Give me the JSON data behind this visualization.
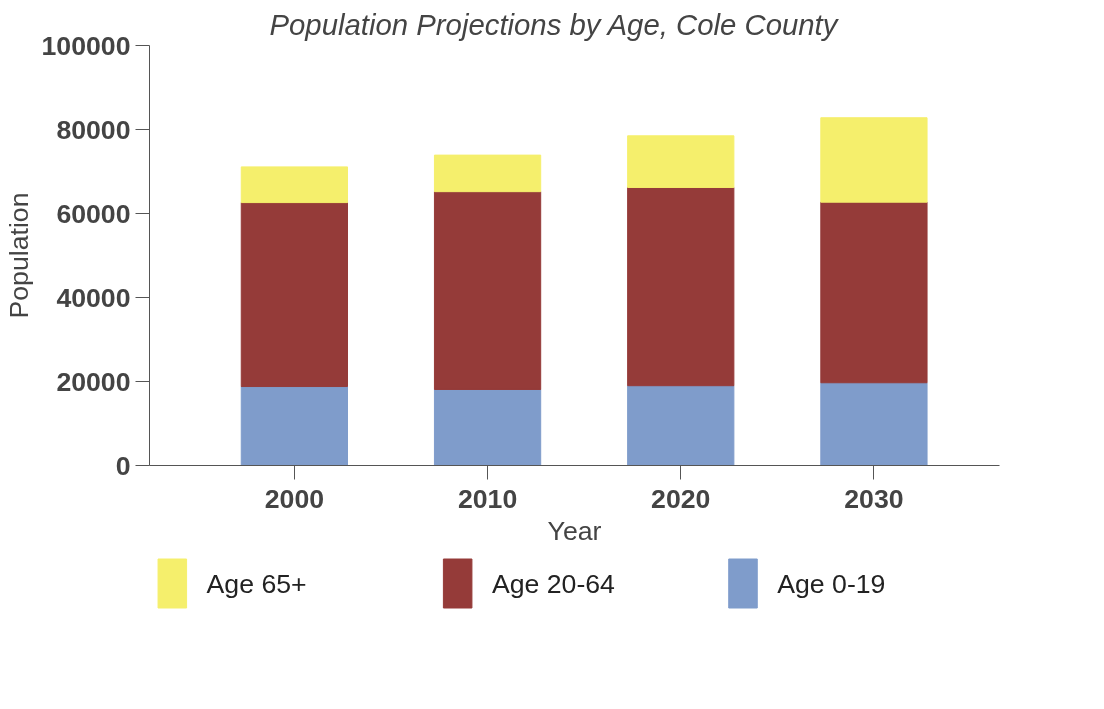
{
  "chart_data": {
    "type": "bar",
    "stacked": true,
    "title": "Population Projections by Age, Cole County",
    "xlabel": "Year",
    "ylabel": "Population",
    "categories": [
      "2000",
      "2010",
      "2020",
      "2030"
    ],
    "series": [
      {
        "name": "Age 0-19",
        "color": "#7f9ccb",
        "values": [
          18800,
          18100,
          19000,
          19700
        ]
      },
      {
        "name": "Age 20-64",
        "color": "#953b39",
        "values": [
          43800,
          47100,
          47200,
          43000
        ]
      },
      {
        "name": "Age 65+",
        "color": "#f5ef6c",
        "values": [
          8500,
          8700,
          12300,
          20100
        ]
      }
    ],
    "ylim": [
      0,
      100000
    ],
    "yticks": [
      0,
      20000,
      40000,
      60000,
      80000,
      100000
    ],
    "grid": false,
    "legend": "bottom"
  }
}
